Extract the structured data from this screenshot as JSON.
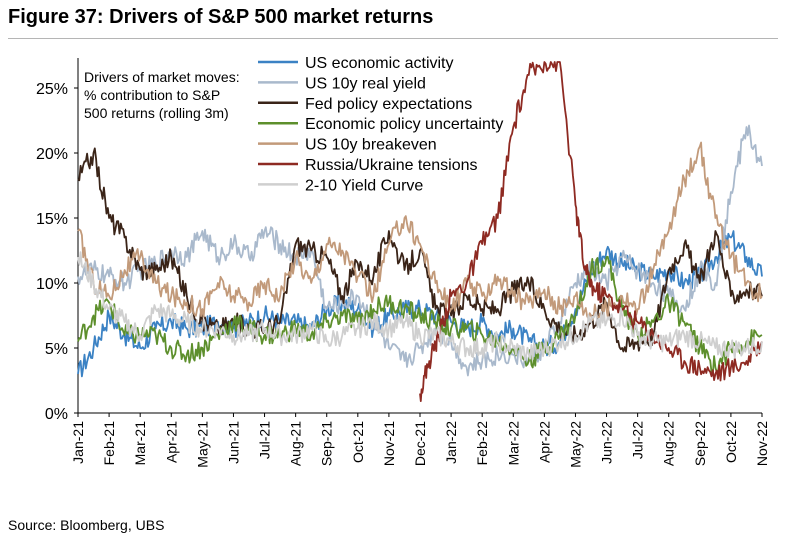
{
  "header": {
    "title": "Figure 37: Drivers of S&P 500 market returns"
  },
  "footer": {
    "source": "Source: Bloomberg, UBS"
  },
  "chart_data": {
    "type": "line",
    "title": "Figure 37: Drivers of S&P 500 market returns",
    "annotation": [
      "Drivers of market moves:",
      "% contribution to S&P",
      "500 returns (rolling 3m)"
    ],
    "xlabel": "",
    "ylabel": "",
    "ylim": [
      0,
      27
    ],
    "yticks": [
      0,
      5,
      10,
      15,
      20,
      25
    ],
    "ytick_labels": [
      "0%",
      "5%",
      "10%",
      "15%",
      "20%",
      "25%"
    ],
    "x_categories": [
      "Jan-21",
      "Feb-21",
      "Mar-21",
      "Apr-21",
      "May-21",
      "Jun-21",
      "Jul-21",
      "Aug-21",
      "Sep-21",
      "Oct-21",
      "Nov-21",
      "Dec-21",
      "Jan-22",
      "Feb-22",
      "Mar-22",
      "Apr-22",
      "May-22",
      "Jun-22",
      "Jul-22",
      "Aug-22",
      "Sep-22",
      "Oct-22",
      "Nov-22"
    ],
    "x_range_months": [
      0,
      22
    ],
    "legend_position": "top-center",
    "series": [
      {
        "name": "US economic activity",
        "color": "#3b82c4",
        "x": [
          0,
          0.5,
          1,
          1.5,
          2,
          2.5,
          3,
          3.5,
          4,
          4.5,
          5,
          5.5,
          6,
          6.5,
          7,
          7.5,
          8,
          8.5,
          9,
          9.5,
          10,
          10.5,
          11,
          11.5,
          12,
          12.5,
          13,
          13.5,
          14,
          14.5,
          15,
          15.5,
          16,
          16.5,
          17,
          17.5,
          18,
          18.5,
          19,
          19.5,
          20,
          20.5,
          21,
          21.5,
          22
        ],
        "y": [
          3,
          5,
          7.5,
          6,
          5,
          6.5,
          7,
          6.5,
          6.5,
          7,
          6.5,
          7,
          7.5,
          7,
          7,
          6.5,
          8,
          8.5,
          8,
          6.5,
          7.5,
          8,
          8,
          7.5,
          7,
          6.5,
          7,
          6,
          6.5,
          5.5,
          5,
          5.5,
          8,
          11,
          12.5,
          11.5,
          11,
          10.5,
          11,
          10,
          10.5,
          12,
          13.5,
          12,
          10.5
        ]
      },
      {
        "name": "US 10y real yield",
        "color": "#a9b9cc",
        "x": [
          0,
          0.5,
          1,
          1.5,
          2,
          2.5,
          3,
          3.5,
          4,
          4.5,
          5,
          5.5,
          6,
          6.5,
          7,
          7.5,
          8,
          8.5,
          9,
          9.5,
          10,
          10.5,
          11,
          11.5,
          12,
          12.5,
          13,
          13.5,
          14,
          14.5,
          15,
          15.5,
          16,
          16.5,
          17,
          17.5,
          18,
          18.5,
          19,
          19.5,
          20,
          20.5,
          21,
          21.5,
          22
        ],
        "y": [
          10.5,
          11,
          10.5,
          10,
          11,
          11.5,
          12.5,
          12,
          14,
          12,
          13,
          12,
          14,
          13,
          12,
          12.5,
          8,
          8.5,
          9,
          7,
          5,
          4,
          5,
          6.5,
          5.5,
          3.5,
          4,
          4.5,
          4.5,
          4,
          5,
          7,
          10,
          11,
          10,
          12,
          11,
          10,
          9,
          8,
          11,
          10,
          17,
          22,
          19
        ]
      },
      {
        "name": "Fed policy expectations",
        "color": "#3a2418",
        "x": [
          0,
          0.5,
          1,
          1.5,
          2,
          2.5,
          3,
          3.5,
          4,
          4.5,
          5,
          5.5,
          6,
          6.5,
          7,
          7.5,
          8,
          8.5,
          9,
          9.5,
          10,
          10.5,
          11,
          11.5,
          12,
          12.5,
          13,
          13.5,
          14,
          14.5,
          15,
          15.5,
          16,
          16.5,
          17,
          17.5,
          18,
          18.5,
          19,
          19.5,
          20,
          20.5,
          21,
          21.5,
          22
        ],
        "y": [
          18,
          20,
          15,
          13.5,
          11,
          11,
          12,
          9,
          7,
          6.5,
          7,
          6.5,
          6.5,
          7,
          13,
          12.5,
          12,
          9,
          11.5,
          10.5,
          14,
          11,
          12.5,
          8,
          7.5,
          9,
          8,
          8,
          9.5,
          10,
          8,
          6.5,
          6,
          7,
          8.5,
          5,
          5.5,
          6,
          11,
          13,
          10,
          14,
          9,
          9.5,
          9
        ]
      },
      {
        "name": "Economic policy uncertainty",
        "color": "#5d8f2c",
        "x": [
          0,
          0.5,
          1,
          1.5,
          2,
          2.5,
          3,
          3.5,
          4,
          4.5,
          5,
          5.5,
          6,
          6.5,
          7,
          7.5,
          8,
          8.5,
          9,
          9.5,
          10,
          10.5,
          11,
          11.5,
          12,
          12.5,
          13,
          13.5,
          14,
          14.5,
          15,
          15.5,
          16,
          16.5,
          17,
          17.5,
          18,
          18.5,
          19,
          19.5,
          20,
          20.5,
          21,
          21.5,
          22
        ],
        "y": [
          5.5,
          7.5,
          8.5,
          6,
          6,
          6,
          5,
          4.5,
          5,
          6,
          7,
          6.5,
          6,
          6,
          6.5,
          6,
          7,
          7.5,
          7,
          8,
          8.5,
          8,
          7.5,
          7,
          6.5,
          6.5,
          6,
          5.5,
          5,
          4,
          5,
          6,
          7.5,
          11,
          12,
          8,
          6,
          7,
          8.5,
          7,
          5,
          3.5,
          5,
          5.5,
          6
        ]
      },
      {
        "name": "US 10y breakeven",
        "color": "#c29a7a",
        "x": [
          0,
          0.5,
          1,
          1.5,
          2,
          2.5,
          3,
          3.5,
          4,
          4.5,
          5,
          5.5,
          6,
          6.5,
          7,
          7.5,
          8,
          8.5,
          9,
          9.5,
          10,
          10.5,
          11,
          11.5,
          12,
          12.5,
          13,
          13.5,
          14,
          14.5,
          15,
          15.5,
          16,
          16.5,
          17,
          17.5,
          18,
          18.5,
          19,
          19.5,
          20,
          20.5,
          21,
          21.5,
          22
        ],
        "y": [
          14,
          10,
          9,
          11,
          12,
          10,
          9,
          8.5,
          8,
          10,
          9,
          8.5,
          10,
          9,
          12,
          10,
          13,
          12.5,
          10.5,
          9,
          13,
          15,
          13,
          10,
          8,
          10,
          9,
          10.5,
          9,
          8.5,
          9.5,
          8,
          9,
          7.5,
          8,
          9,
          8,
          11,
          14,
          18,
          20.5,
          15,
          12,
          10,
          9
        ]
      },
      {
        "name": "Russia/Ukraine tensions",
        "color": "#8e2a22",
        "x": [
          11,
          11.3,
          11.6,
          12,
          12.5,
          13,
          13.5,
          14,
          14.5,
          15,
          15.5,
          16,
          16.3,
          16.6,
          17,
          17.5,
          18,
          18.5,
          19,
          19.5,
          20,
          20.5,
          21,
          21.5,
          22
        ],
        "y": [
          1.5,
          4,
          6,
          9,
          10,
          13,
          15,
          22,
          26,
          27,
          27,
          16,
          11,
          9.5,
          9,
          8,
          7,
          6,
          5,
          4,
          3.5,
          3,
          3.5,
          4,
          5.5
        ]
      },
      {
        "name": "2-10 Yield Curve",
        "color": "#cfcfcf",
        "x": [
          0,
          0.5,
          1,
          1.5,
          2,
          2.5,
          3,
          3.5,
          4,
          4.5,
          5,
          5.5,
          6,
          6.5,
          7,
          7.5,
          8,
          8.5,
          9,
          9.5,
          10,
          10.5,
          11,
          11.5,
          12,
          12.5,
          13,
          13.5,
          14,
          14.5,
          15,
          15.5,
          16,
          16.5,
          17,
          17.5,
          18,
          18.5,
          19,
          19.5,
          20,
          20.5,
          21,
          21.5,
          22
        ],
        "y": [
          12,
          10,
          8,
          7,
          6,
          8,
          7.5,
          7,
          6.5,
          6.5,
          6,
          6,
          6.5,
          6,
          6,
          6.5,
          5.5,
          6,
          6.5,
          7,
          6.5,
          7,
          6,
          6,
          5.5,
          5,
          5,
          5.5,
          5,
          4.5,
          5,
          5.5,
          6,
          7,
          7,
          7.5,
          6,
          5.5,
          5.5,
          6,
          5.5,
          5,
          5,
          5,
          5.5
        ]
      }
    ]
  }
}
